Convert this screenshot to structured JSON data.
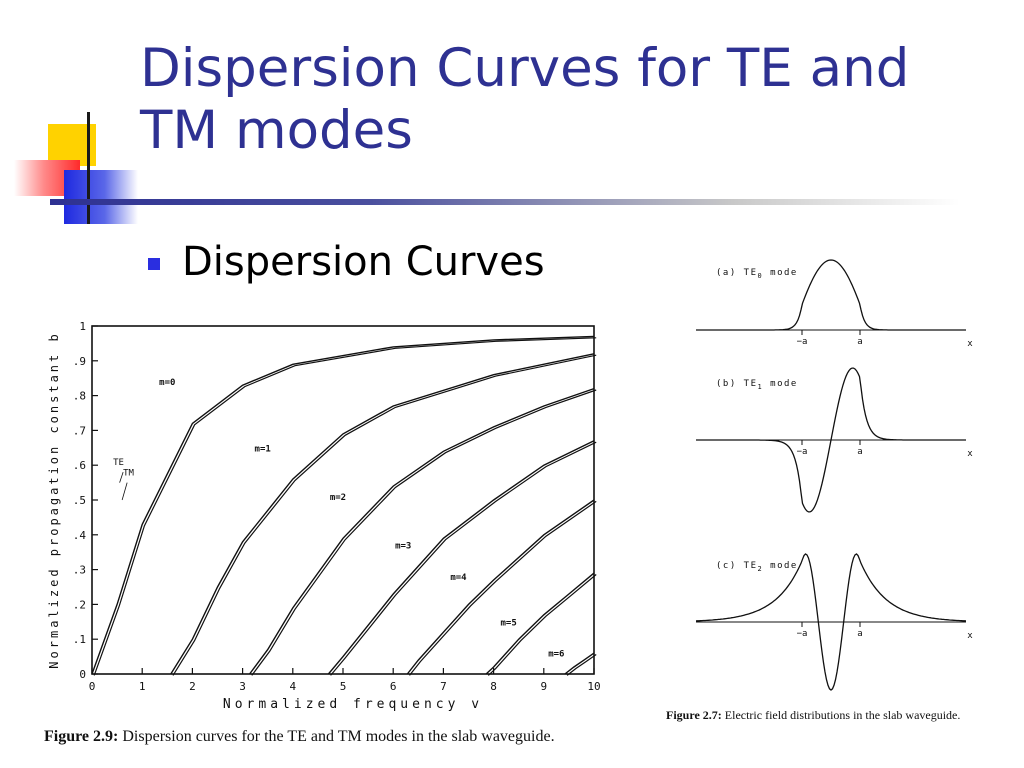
{
  "slide": {
    "title_line1": "Dispersion Curves for TE and",
    "title_line2": "TM modes",
    "bullet": "Dispersion Curves",
    "accent_color": "#2e3192"
  },
  "dispersion_figure": {
    "caption_label": "Figure 2.9:",
    "caption_text": " Dispersion curves for the TE and TM modes in the slab waveguide."
  },
  "field_figure": {
    "caption_label": "Figure 2.7:",
    "caption_text": " Electric field distributions in the slab waveguide.",
    "panels": [
      {
        "label_prefix": "(a) TE",
        "subscript": "0",
        "label_suffix": " mode",
        "minus_a": "−a",
        "a": "a",
        "x": "x"
      },
      {
        "label_prefix": "(b) TE",
        "subscript": "1",
        "label_suffix": " mode",
        "minus_a": "−a",
        "a": "a",
        "x": "x"
      },
      {
        "label_prefix": "(c) TE",
        "subscript": "2",
        "label_suffix": " mode",
        "minus_a": "−a",
        "a": "a",
        "x": "x"
      }
    ]
  },
  "chart_data": {
    "type": "line",
    "xlabel": "Normalized frequency v",
    "ylabel": "Normalized propagation constant b",
    "xlim": [
      0,
      10
    ],
    "ylim": [
      0,
      1
    ],
    "x_ticks": [
      "0",
      "1",
      "2",
      "3",
      "4",
      "5",
      "6",
      "7",
      "8",
      "9",
      "10"
    ],
    "y_ticks": [
      "0",
      ".1",
      ".2",
      ".3",
      ".4",
      ".5",
      ".6",
      ".7",
      ".8",
      ".9",
      "1"
    ],
    "annotations": [
      "TE",
      "TM"
    ],
    "series": [
      {
        "name": "m=0",
        "cutoff": 0.0,
        "x": [
          0,
          0.5,
          1,
          2,
          3,
          4,
          6,
          8,
          10
        ],
        "y": [
          0,
          0.2,
          0.43,
          0.72,
          0.83,
          0.89,
          0.94,
          0.96,
          0.97
        ]
      },
      {
        "name": "m=1",
        "cutoff": 1.57,
        "x": [
          1.57,
          2,
          2.5,
          3,
          4,
          5,
          6,
          8,
          10
        ],
        "y": [
          0,
          0.1,
          0.25,
          0.38,
          0.56,
          0.69,
          0.77,
          0.86,
          0.92
        ]
      },
      {
        "name": "m=2",
        "cutoff": 3.14,
        "x": [
          3.14,
          3.5,
          4,
          5,
          6,
          7,
          8,
          9,
          10
        ],
        "y": [
          0,
          0.07,
          0.19,
          0.39,
          0.54,
          0.64,
          0.71,
          0.77,
          0.82
        ]
      },
      {
        "name": "m=3",
        "cutoff": 4.71,
        "x": [
          4.71,
          5,
          5.5,
          6,
          7,
          8,
          9,
          10
        ],
        "y": [
          0,
          0.05,
          0.14,
          0.23,
          0.39,
          0.5,
          0.6,
          0.67
        ]
      },
      {
        "name": "m=4",
        "cutoff": 6.28,
        "x": [
          6.28,
          6.5,
          7,
          7.5,
          8,
          9,
          10
        ],
        "y": [
          0,
          0.04,
          0.12,
          0.2,
          0.27,
          0.4,
          0.5
        ]
      },
      {
        "name": "m=5",
        "cutoff": 7.85,
        "x": [
          7.85,
          8,
          8.5,
          9,
          9.5,
          10
        ],
        "y": [
          0,
          0.02,
          0.1,
          0.17,
          0.23,
          0.29
        ]
      },
      {
        "name": "m=6",
        "cutoff": 9.42,
        "x": [
          9.42,
          9.6,
          9.8,
          10
        ],
        "y": [
          0,
          0.02,
          0.04,
          0.06
        ]
      }
    ]
  }
}
